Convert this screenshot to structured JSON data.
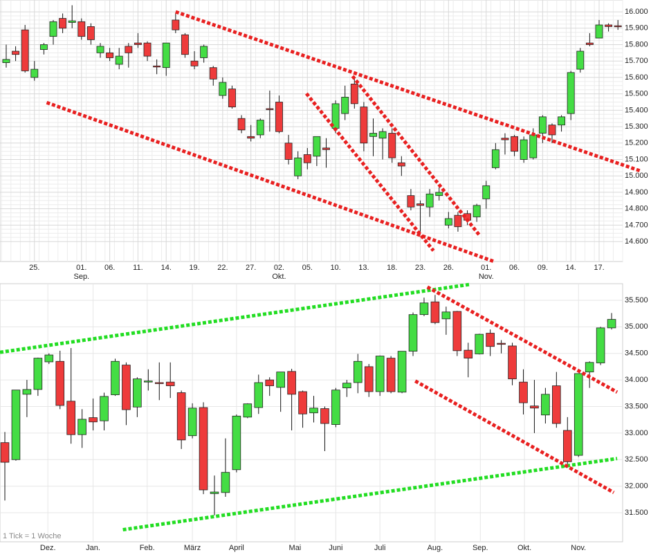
{
  "chart_data": [
    {
      "type": "candlestick",
      "xlim": [
        -0.66,
        65.5
      ],
      "xticks": [
        {
          "value": 3,
          "label": "25."
        },
        {
          "value": 8,
          "label": "01."
        },
        {
          "value": 11,
          "label": "06."
        },
        {
          "value": 14,
          "label": "11."
        },
        {
          "value": 17,
          "label": "14."
        },
        {
          "value": 20,
          "label": "19."
        },
        {
          "value": 23,
          "label": "22."
        },
        {
          "value": 26,
          "label": "27."
        },
        {
          "value": 29,
          "label": "02."
        },
        {
          "value": 32,
          "label": "05."
        },
        {
          "value": 35,
          "label": "10."
        },
        {
          "value": 38,
          "label": "13."
        },
        {
          "value": 41,
          "label": "18."
        },
        {
          "value": 44,
          "label": "23."
        },
        {
          "value": 47,
          "label": "26."
        },
        {
          "value": 51,
          "label": "01."
        },
        {
          "value": 54,
          "label": "06."
        },
        {
          "value": 57,
          "label": "09."
        },
        {
          "value": 60,
          "label": "14."
        },
        {
          "value": 63,
          "label": "17."
        }
      ],
      "xticks_sub": [
        {
          "value": 8,
          "label": "Sep."
        },
        {
          "value": 29,
          "label": "Okt."
        },
        {
          "value": 51,
          "label": "Nov."
        }
      ],
      "ylim": [
        14478,
        16072
      ],
      "yticks": [
        {
          "value": 14600,
          "label": "14.600"
        },
        {
          "value": 14700,
          "label": "14.700"
        },
        {
          "value": 14800,
          "label": "14.800"
        },
        {
          "value": 14900,
          "label": "14.900"
        },
        {
          "value": 15000,
          "label": "15.000"
        },
        {
          "value": 15100,
          "label": "15.100"
        },
        {
          "value": 15200,
          "label": "15.200"
        },
        {
          "value": 15300,
          "label": "15.300"
        },
        {
          "value": 15400,
          "label": "15.400"
        },
        {
          "value": 15500,
          "label": "15.500"
        },
        {
          "value": 15600,
          "label": "15.600"
        },
        {
          "value": 15700,
          "label": "15.700"
        },
        {
          "value": 15800,
          "label": "15.800"
        },
        {
          "value": 15900,
          "label": "15.900"
        },
        {
          "value": 16000,
          "label": "16.000"
        }
      ],
      "grid": "dense",
      "up_color": "#44dd44",
      "down_color": "#ee3b3b",
      "series": [
        {
          "open": [
            15690,
            15760,
            15890,
            15600,
            15770,
            15850,
            15960,
            15935,
            15940,
            15910,
            15750,
            15750,
            15680,
            15790,
            15810,
            15810,
            15670,
            15660,
            15950,
            15860,
            15700,
            15720,
            15660,
            15490,
            15530,
            15350,
            15240,
            15250,
            15410,
            15450,
            15200,
            15000,
            15130,
            15120,
            15170,
            15290,
            15380,
            15560,
            15420,
            15240,
            15230,
            15260,
            15080,
            14880,
            14830,
            14810,
            14880,
            14700,
            14760,
            14770,
            14750,
            14860,
            15050,
            15230,
            15240,
            15100,
            15110,
            15260,
            15310,
            15310,
            15380,
            15650,
            15810,
            15840,
            15920,
            15915
          ],
          "high": [
            15800,
            15790,
            15920,
            15700,
            15810,
            15950,
            15990,
            16040,
            15960,
            15930,
            15810,
            15780,
            15780,
            15810,
            15870,
            15820,
            15710,
            15810,
            15990,
            15870,
            15760,
            15800,
            15670,
            15600,
            15550,
            15370,
            15310,
            15350,
            15520,
            15490,
            15250,
            15150,
            15170,
            15240,
            15230,
            15460,
            15550,
            15600,
            15450,
            15350,
            15290,
            15290,
            15120,
            14920,
            14850,
            14920,
            14930,
            14780,
            14780,
            14790,
            14830,
            14970,
            15200,
            15260,
            15250,
            15240,
            15290,
            15370,
            15320,
            15370,
            15640,
            15780,
            15870,
            15950,
            15930,
            15950
          ],
          "low": [
            15660,
            15700,
            15630,
            15580,
            15740,
            15800,
            15870,
            15900,
            15830,
            15800,
            15720,
            15700,
            15650,
            15660,
            15780,
            15700,
            15620,
            15610,
            15870,
            15720,
            15650,
            15690,
            15550,
            15470,
            15410,
            15260,
            15210,
            15230,
            15270,
            15260,
            15070,
            14980,
            15040,
            15060,
            15050,
            15260,
            15340,
            15410,
            15150,
            15120,
            15100,
            15080,
            15000,
            14790,
            14660,
            14750,
            14850,
            14680,
            14660,
            14700,
            14720,
            14800,
            15040,
            15130,
            15120,
            15080,
            15100,
            15200,
            15200,
            15270,
            15340,
            15630,
            15790,
            15840,
            15880,
            15890
          ],
          "close": [
            15710,
            15740,
            15640,
            15650,
            15800,
            15940,
            15900,
            15945,
            15850,
            15830,
            15790,
            15720,
            15730,
            15750,
            15800,
            15730,
            15665,
            15810,
            15890,
            15740,
            15670,
            15790,
            15590,
            15570,
            15420,
            15280,
            15230,
            15340,
            15405,
            15270,
            15100,
            15110,
            15080,
            15240,
            15160,
            15440,
            15480,
            15440,
            15200,
            15260,
            15270,
            15110,
            15060,
            14810,
            14820,
            14890,
            14900,
            14740,
            14690,
            14730,
            14820,
            14940,
            15160,
            15220,
            15150,
            15220,
            15250,
            15360,
            15250,
            15360,
            15630,
            15760,
            15800,
            15920,
            15910,
            15910
          ]
        }
      ],
      "trendlines": [
        {
          "color": "#e82020",
          "x": [
            18,
            67.4
          ],
          "y": [
            16000,
            15030
          ]
        },
        {
          "color": "#e82020",
          "x": [
            4.3,
            51.9
          ],
          "y": [
            15447,
            14477
          ]
        },
        {
          "color": "#e82020",
          "x": [
            31.9,
            45.4
          ],
          "y": [
            15502,
            14544
          ]
        },
        {
          "color": "#e82020",
          "x": [
            36.8,
            50.3
          ],
          "y": [
            15608,
            14637
          ]
        }
      ]
    },
    {
      "type": "candlestick",
      "xlim": [
        -0.44,
        56.0
      ],
      "xticks": [
        {
          "value": 3.9,
          "label": "Dez."
        },
        {
          "value": 8,
          "label": "Jan."
        },
        {
          "value": 12.9,
          "label": "Feb."
        },
        {
          "value": 17,
          "label": "März"
        },
        {
          "value": 21,
          "label": "April"
        },
        {
          "value": 26.3,
          "label": "Mai"
        },
        {
          "value": 30,
          "label": "Juni"
        },
        {
          "value": 34,
          "label": "Juli"
        },
        {
          "value": 39,
          "label": "Aug."
        },
        {
          "value": 43.1,
          "label": "Sep."
        },
        {
          "value": 47.1,
          "label": "Okt."
        },
        {
          "value": 52,
          "label": "Nov."
        }
      ],
      "ylim": [
        30953,
        35812
      ],
      "yticks": [
        {
          "value": 31500,
          "label": "31.500"
        },
        {
          "value": 32000,
          "label": "32.000"
        },
        {
          "value": 32500,
          "label": "32.500"
        },
        {
          "value": 33000,
          "label": "33.000"
        },
        {
          "value": 33500,
          "label": "33.500"
        },
        {
          "value": 34000,
          "label": "34.000"
        },
        {
          "value": 34500,
          "label": "34.500"
        },
        {
          "value": 35000,
          "label": "35.000"
        },
        {
          "value": 35500,
          "label": "35.500"
        }
      ],
      "grid": "light",
      "annotation": "1 Tick = 1 Woche",
      "up_color": "#44dd44",
      "down_color": "#ee3b3b",
      "series": [
        {
          "open": [
            32820,
            32500,
            33730,
            33820,
            34340,
            34350,
            33600,
            32970,
            33290,
            33230,
            33720,
            34280,
            33490,
            33960,
            33950,
            33960,
            33760,
            32950,
            33480,
            31860,
            31880,
            32310,
            33300,
            33480,
            34000,
            33860,
            34160,
            33780,
            33380,
            33460,
            33160,
            33850,
            33950,
            34250,
            33780,
            34410,
            33770,
            34540,
            35230,
            35470,
            35150,
            35290,
            34560,
            34490,
            34880,
            34690,
            34640,
            33960,
            33510,
            33340,
            33890,
            33050,
            32580,
            34150,
            34320,
            34980
          ],
          "high": [
            33020,
            33810,
            34000,
            34420,
            34500,
            34550,
            34600,
            33450,
            33650,
            33760,
            34400,
            34330,
            34050,
            34200,
            34330,
            34330,
            33800,
            33560,
            33580,
            32200,
            32900,
            33350,
            33560,
            34100,
            34050,
            34150,
            34210,
            33800,
            33700,
            33500,
            33850,
            34000,
            34490,
            34300,
            34460,
            34450,
            34540,
            35270,
            35550,
            35600,
            35380,
            35300,
            34700,
            34870,
            34950,
            34750,
            34700,
            34200,
            34000,
            33850,
            34150,
            33300,
            34120,
            34350,
            35000,
            35260
          ],
          "low": [
            31730,
            32480,
            33300,
            33700,
            34300,
            33450,
            32800,
            32720,
            33050,
            33050,
            33700,
            33150,
            33300,
            33800,
            33620,
            33660,
            32700,
            32900,
            31850,
            31450,
            31800,
            32260,
            33280,
            33360,
            33700,
            33400,
            33050,
            33100,
            33200,
            32660,
            33110,
            33680,
            33750,
            33680,
            33700,
            33750,
            33750,
            34450,
            35200,
            35050,
            34850,
            34450,
            34050,
            34480,
            34450,
            34500,
            33900,
            33350,
            33000,
            33180,
            33100,
            32350,
            32550,
            33850,
            34280,
            34950
          ],
          "close": [
            32450,
            33810,
            33820,
            34410,
            34470,
            33520,
            32970,
            33260,
            33210,
            33690,
            34350,
            33440,
            34020,
            33980,
            33940,
            33890,
            32870,
            33470,
            31930,
            31890,
            32260,
            33320,
            33550,
            33950,
            33890,
            34150,
            33730,
            33360,
            33470,
            33180,
            33810,
            33940,
            34350,
            33780,
            34450,
            33780,
            34540,
            35230,
            35450,
            35080,
            35280,
            34550,
            34410,
            34860,
            34630,
            34670,
            34020,
            33570,
            33470,
            33730,
            33180,
            32460,
            34120,
            34330,
            34980,
            35140
          ]
        }
      ],
      "trendlines": [
        {
          "color": "#22dd22",
          "x": [
            -0.44,
            42.2
          ],
          "y": [
            34520,
            35800
          ]
        },
        {
          "color": "#22dd22",
          "x": [
            10.7,
            55.5
          ],
          "y": [
            31180,
            32520
          ]
        },
        {
          "color": "#e82020",
          "x": [
            38.3,
            55.5
          ],
          "y": [
            35750,
            33770
          ]
        },
        {
          "color": "#e82020",
          "x": [
            37.2,
            55.2
          ],
          "y": [
            33980,
            31880
          ]
        }
      ]
    }
  ]
}
